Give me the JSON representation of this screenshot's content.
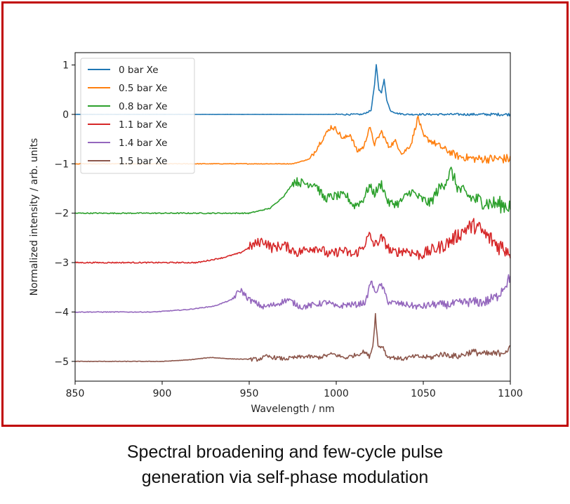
{
  "caption": {
    "line1": "Spectral broadening and few-cycle pulse",
    "line2": "generation via self-phase modulation"
  },
  "frame_color": "#c00000",
  "chart_data": {
    "type": "line",
    "title": "",
    "xlabel": "Wavelength / nm",
    "ylabel": "Normalized intensity / arb. units",
    "xlim": [
      850,
      1100
    ],
    "ylim": [
      -5.4,
      1.25
    ],
    "xticks": [
      850,
      900,
      950,
      1000,
      1050,
      1100
    ],
    "yticks": [
      1,
      0,
      -1,
      -2,
      -3,
      -4,
      -5
    ],
    "grid": false,
    "legend_position": "top-left",
    "series": [
      {
        "name": "0 bar Xe",
        "color": "#1f77b4",
        "offset": 0,
        "noise": 0.015,
        "noise_start": 1000,
        "base_points": [
          [
            850,
            0
          ],
          [
            1015,
            0
          ],
          [
            1020,
            0.08
          ],
          [
            1022,
            0.6
          ],
          [
            1023,
            1.0
          ],
          [
            1024.5,
            0.5
          ],
          [
            1026,
            0.45
          ],
          [
            1027.5,
            0.7
          ],
          [
            1029,
            0.3
          ],
          [
            1031,
            0.08
          ],
          [
            1035,
            0.02
          ],
          [
            1040,
            0
          ],
          [
            1100,
            0
          ]
        ]
      },
      {
        "name": "0.5 bar Xe",
        "color": "#ff7f0e",
        "offset": -1,
        "noise": 0.05,
        "noise_start": 985,
        "base_points": [
          [
            850,
            0
          ],
          [
            975,
            0
          ],
          [
            985,
            0.1
          ],
          [
            992,
            0.5
          ],
          [
            997,
            0.75
          ],
          [
            1000,
            0.7
          ],
          [
            1004,
            0.5
          ],
          [
            1008,
            0.6
          ],
          [
            1012,
            0.25
          ],
          [
            1016,
            0.35
          ],
          [
            1019,
            0.75
          ],
          [
            1022,
            0.4
          ],
          [
            1026,
            0.65
          ],
          [
            1030,
            0.35
          ],
          [
            1034,
            0.45
          ],
          [
            1038,
            0.2
          ],
          [
            1043,
            0.4
          ],
          [
            1047,
            0.95
          ],
          [
            1050,
            0.55
          ],
          [
            1055,
            0.45
          ],
          [
            1062,
            0.3
          ],
          [
            1070,
            0.15
          ],
          [
            1080,
            0.1
          ],
          [
            1090,
            0.1
          ],
          [
            1100,
            0.1
          ]
        ]
      },
      {
        "name": "0.8 bar Xe",
        "color": "#2ca02c",
        "offset": -2,
        "noise": 0.09,
        "noise_start": 975,
        "base_points": [
          [
            850,
            0
          ],
          [
            950,
            0
          ],
          [
            962,
            0.1
          ],
          [
            970,
            0.35
          ],
          [
            976,
            0.65
          ],
          [
            982,
            0.6
          ],
          [
            988,
            0.6
          ],
          [
            993,
            0.3
          ],
          [
            1000,
            0.35
          ],
          [
            1006,
            0.35
          ],
          [
            1010,
            0.15
          ],
          [
            1015,
            0.25
          ],
          [
            1019,
            0.55
          ],
          [
            1022,
            0.4
          ],
          [
            1026,
            0.6
          ],
          [
            1030,
            0.2
          ],
          [
            1036,
            0.2
          ],
          [
            1043,
            0.45
          ],
          [
            1048,
            0.3
          ],
          [
            1054,
            0.2
          ],
          [
            1058,
            0.45
          ],
          [
            1062,
            0.6
          ],
          [
            1066,
            0.85
          ],
          [
            1070,
            0.5
          ],
          [
            1078,
            0.3
          ],
          [
            1088,
            0.2
          ],
          [
            1100,
            0.15
          ]
        ]
      },
      {
        "name": "1.1 bar Xe",
        "color": "#d62728",
        "offset": -3,
        "noise": 0.1,
        "noise_start": 950,
        "base_points": [
          [
            850,
            0
          ],
          [
            920,
            0
          ],
          [
            935,
            0.1
          ],
          [
            945,
            0.2
          ],
          [
            952,
            0.35
          ],
          [
            958,
            0.45
          ],
          [
            963,
            0.3
          ],
          [
            970,
            0.35
          ],
          [
            978,
            0.2
          ],
          [
            985,
            0.3
          ],
          [
            990,
            0.3
          ],
          [
            996,
            0.15
          ],
          [
            1003,
            0.25
          ],
          [
            1010,
            0.15
          ],
          [
            1015,
            0.3
          ],
          [
            1019,
            0.55
          ],
          [
            1022,
            0.35
          ],
          [
            1026,
            0.5
          ],
          [
            1032,
            0.2
          ],
          [
            1040,
            0.25
          ],
          [
            1048,
            0.15
          ],
          [
            1055,
            0.25
          ],
          [
            1062,
            0.35
          ],
          [
            1068,
            0.5
          ],
          [
            1075,
            0.7
          ],
          [
            1080,
            0.75
          ],
          [
            1086,
            0.55
          ],
          [
            1093,
            0.35
          ],
          [
            1100,
            0.25
          ]
        ]
      },
      {
        "name": "1.4 bar Xe",
        "color": "#9467bd",
        "offset": -4,
        "noise": 0.06,
        "noise_start": 940,
        "base_points": [
          [
            850,
            0
          ],
          [
            895,
            0
          ],
          [
            915,
            0.05
          ],
          [
            930,
            0.12
          ],
          [
            940,
            0.25
          ],
          [
            945,
            0.45
          ],
          [
            950,
            0.25
          ],
          [
            958,
            0.1
          ],
          [
            965,
            0.15
          ],
          [
            972,
            0.25
          ],
          [
            980,
            0.1
          ],
          [
            988,
            0.15
          ],
          [
            995,
            0.2
          ],
          [
            1000,
            0.1
          ],
          [
            1006,
            0.15
          ],
          [
            1012,
            0.15
          ],
          [
            1017,
            0.2
          ],
          [
            1020,
            0.65
          ],
          [
            1022,
            0.4
          ],
          [
            1026,
            0.55
          ],
          [
            1030,
            0.2
          ],
          [
            1040,
            0.15
          ],
          [
            1048,
            0.1
          ],
          [
            1055,
            0.15
          ],
          [
            1065,
            0.15
          ],
          [
            1075,
            0.2
          ],
          [
            1085,
            0.2
          ],
          [
            1092,
            0.3
          ],
          [
            1097,
            0.55
          ],
          [
            1100,
            0.7
          ]
        ]
      },
      {
        "name": "1.5 bar Xe",
        "color": "#8c564b",
        "offset": -5,
        "noise": 0.04,
        "noise_start": 950,
        "base_points": [
          [
            850,
            0
          ],
          [
            900,
            0
          ],
          [
            915,
            0.03
          ],
          [
            928,
            0.08
          ],
          [
            940,
            0.05
          ],
          [
            955,
            0.04
          ],
          [
            960,
            0.1
          ],
          [
            970,
            0.05
          ],
          [
            982,
            0.1
          ],
          [
            990,
            0.08
          ],
          [
            998,
            0.15
          ],
          [
            1005,
            0.07
          ],
          [
            1013,
            0.15
          ],
          [
            1016,
            0.2
          ],
          [
            1019,
            0.1
          ],
          [
            1021,
            0.3
          ],
          [
            1022.5,
            0.95
          ],
          [
            1024,
            0.3
          ],
          [
            1027,
            0.3
          ],
          [
            1029,
            0.1
          ],
          [
            1038,
            0.05
          ],
          [
            1045,
            0.1
          ],
          [
            1055,
            0.08
          ],
          [
            1060,
            0.15
          ],
          [
            1070,
            0.1
          ],
          [
            1078,
            0.2
          ],
          [
            1085,
            0.15
          ],
          [
            1092,
            0.15
          ],
          [
            1100,
            0.25
          ]
        ]
      }
    ]
  }
}
